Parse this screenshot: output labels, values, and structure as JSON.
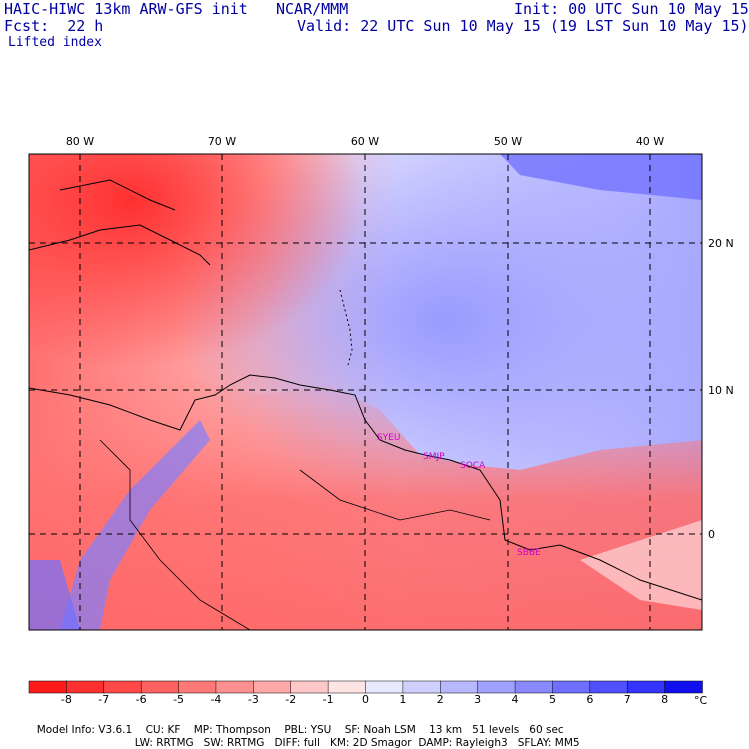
{
  "header": {
    "model_title": "HAIC-HIWC 13km ARW-GFS init",
    "org": "NCAR/MMM",
    "init": "Init: 00 UTC Sun 10 May 15",
    "fcst": "Fcst:  22 h",
    "valid": "Valid: 22 UTC Sun 10 May 15 (19 LST Sun 10 May 15)",
    "field": "Lifted index"
  },
  "axes": {
    "lon_labels": [
      "80 W",
      "70 W",
      "60 W",
      "50 W",
      "40 W"
    ],
    "lat_labels": [
      "20 N",
      "10 N",
      "0"
    ]
  },
  "stations": [
    "SYEU",
    "SMJP",
    "SOCA",
    "SBBE"
  ],
  "colorbar": {
    "labels": [
      "-8",
      "-7",
      "-6",
      "-5",
      "-4",
      "-3",
      "-2",
      "-1",
      "0",
      "1",
      "2",
      "3",
      "4",
      "5",
      "6",
      "7",
      "8"
    ],
    "unit": "°C",
    "colors": [
      "#ff1a1a",
      "#ff3030",
      "#ff4848",
      "#ff6060",
      "#ff7878",
      "#ff9090",
      "#ffa8a8",
      "#ffc8c8",
      "#ffe4e4",
      "#e8e8ff",
      "#d0d0ff",
      "#b8b8ff",
      "#a0a0ff",
      "#8888ff",
      "#6e6eff",
      "#5050ff",
      "#3434ff",
      "#1010ee"
    ]
  },
  "model_info": {
    "line1": [
      "Model Info: V3.6.1",
      "CU: KF",
      "MP: Thompson",
      "PBL: YSU",
      "SF: Noah LSM",
      "13 km",
      "51 levels",
      "60 sec"
    ],
    "line2": [
      "LW: RRTMG",
      "SW: RRTMG",
      "DIFF: full",
      "KM: 2D Smagor",
      "DAMP: Rayleigh3",
      "SFLAY: MM5"
    ]
  }
}
